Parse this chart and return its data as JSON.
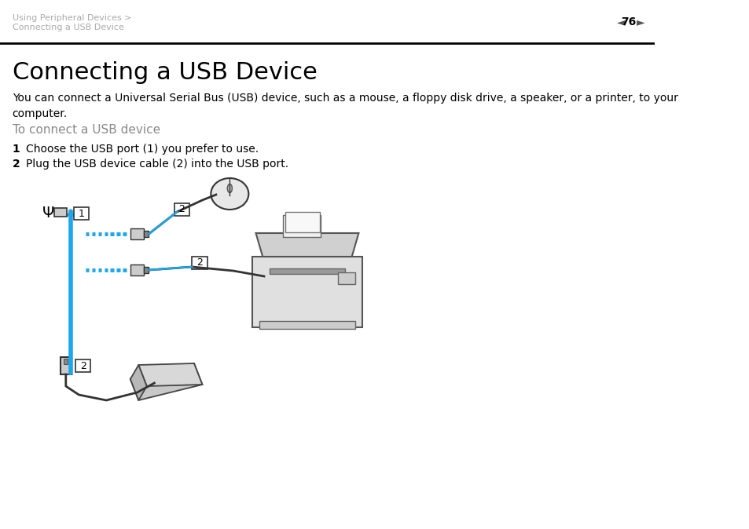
{
  "bg_color": "#ffffff",
  "header_text_line1": "Using Peripheral Devices >",
  "header_text_line2": "Connecting a USB Device",
  "header_text_color": "#aaaaaa",
  "page_number": "76",
  "title": "Connecting a USB Device",
  "title_fontsize": 22,
  "title_color": "#000000",
  "body_text": "You can connect a Universal Serial Bus (USB) device, such as a mouse, a floppy disk drive, a speaker, or a printer, to your\ncomputer.",
  "body_fontsize": 10,
  "body_color": "#000000",
  "subheading": "To connect a USB device",
  "subheading_color": "#888888",
  "subheading_fontsize": 11,
  "step1": "Choose the USB port (1) you prefer to use.",
  "step2": "Plug the USB device cable (2) into the USB port.",
  "step_fontsize": 10,
  "step_color": "#000000",
  "divider_color": "#000000",
  "blue_color": "#1aa7ec"
}
